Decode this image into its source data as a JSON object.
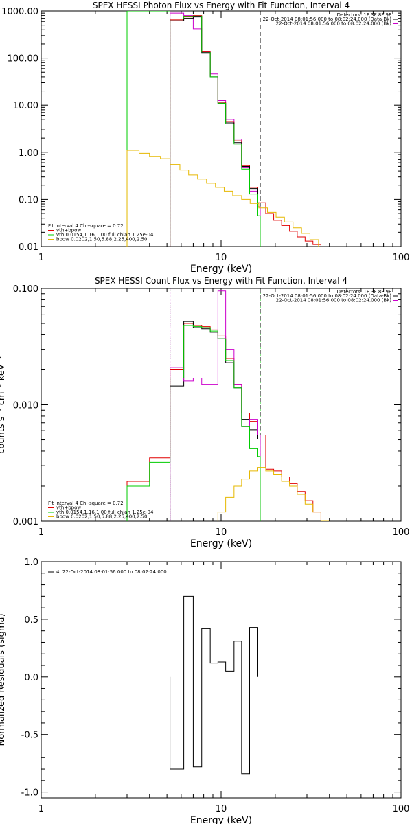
{
  "chart_data": [
    {
      "type": "line",
      "title": "SPEX HESSI Photon Flux vs Energy with Fit Function, Interval 4",
      "xlabel": "Energy (keV)",
      "ylabel": "",
      "xscale": "log",
      "yscale": "log",
      "xlim": [
        1,
        100
      ],
      "ylim": [
        0.01,
        1000
      ],
      "x_ticks": [
        "1",
        "10",
        "100"
      ],
      "y_ticks": [
        "0.01",
        "0.10",
        "1.00",
        "10.00",
        "100.00",
        "1000.00"
      ],
      "detectors": "Detectors: 1F 3F 8F 9F",
      "legend": [
        {
          "text": "Fit Interval 4   Chi-square = 0.72",
          "color": "#000000"
        },
        {
          "text": "vth+bpow",
          "color": "#e00000"
        },
        {
          "text": "vth 0.0154,1.16,1.00  full chian 1.25e-04",
          "color": "#00cc00"
        },
        {
          "text": "bpow 0.0202,1.50,5.88,2.25,400,2.50",
          "color": "#e6b800"
        }
      ],
      "time_legend": [
        {
          "text": "22-Oct-2014 08:01:56.000 to 08:02:24.000 (Data-Bk)",
          "color": "#000000"
        },
        {
          "text": "22-Oct-2014 08:01:56.000 to 08:02:24.000 (Bk)",
          "color": "#cc00cc"
        }
      ],
      "vlines": [
        {
          "x": 3.0,
          "color": "#00cc00",
          "dash": ""
        },
        {
          "x": 5.2,
          "color": "#cc00cc",
          "dash": "3,2"
        },
        {
          "x": 16.5,
          "color": "#000000",
          "dash": "6,4"
        }
      ],
      "series": [
        {
          "color": "#00cc00",
          "edges": [
            3.0,
            5.2
          ],
          "values": [
            1000,
            1000
          ]
        },
        {
          "color": "#cc00cc",
          "edges": [
            5.2,
            6.2,
            7.0,
            7.8,
            8.7,
            9.6,
            10.6,
            11.8,
            13.0,
            14.4,
            16.0,
            16.5
          ],
          "values": [
            900,
            800,
            420,
            140,
            46,
            12.5,
            5.0,
            1.9,
            0.48,
            0.15,
            0.07
          ]
        },
        {
          "color": "#e00000",
          "edges": [
            5.2,
            6.2,
            7.0,
            7.8,
            8.7,
            9.6,
            10.6,
            11.8,
            13.0,
            14.4,
            16.0,
            17.7,
            19.6,
            21.7,
            24.0,
            26.5,
            29.3,
            32.4,
            35.9
          ],
          "values": [
            650,
            750,
            800,
            140,
            42,
            11.5,
            4.5,
            1.75,
            0.52,
            0.18,
            0.085,
            0.05,
            0.036,
            0.028,
            0.021,
            0.016,
            0.013,
            0.011
          ]
        },
        {
          "color": "#000000",
          "edges": [
            5.2,
            6.2,
            7.0,
            7.8,
            8.7,
            9.6,
            10.6,
            11.8,
            13.0,
            14.4,
            16.0
          ],
          "values": [
            620,
            700,
            750,
            130,
            40,
            11,
            4.2,
            1.6,
            0.5,
            0.17,
            0.08
          ]
        },
        {
          "color": "#00cc00",
          "edges": [
            5.2,
            6.2,
            7.0,
            7.8,
            8.7,
            9.6,
            10.6,
            11.8,
            13.0,
            14.4,
            16.0,
            16.5
          ],
          "values": [
            680,
            760,
            780,
            135,
            40,
            11,
            4.0,
            1.5,
            0.44,
            0.13,
            0.045
          ]
        },
        {
          "color": "#e6b800",
          "edges": [
            3.0,
            3.5,
            4.0,
            4.6,
            5.2,
            5.9,
            6.6,
            7.4,
            8.3,
            9.3,
            10.4,
            11.6,
            13.0,
            14.5,
            16.2,
            18.1,
            20.2,
            22.5,
            25.1,
            28.0,
            31.2,
            34.8
          ],
          "values": [
            1.1,
            0.95,
            0.82,
            0.73,
            0.55,
            0.42,
            0.33,
            0.27,
            0.22,
            0.18,
            0.15,
            0.12,
            0.1,
            0.082,
            0.066,
            0.053,
            0.042,
            0.033,
            0.025,
            0.019,
            0.014
          ]
        }
      ]
    },
    {
      "type": "line",
      "title": "SPEX HESSI Count Flux vs Energy with Fit Function, Interval 4",
      "xlabel": "Energy (keV)",
      "ylabel": "counts s⁻¹ cm⁻² keV⁻¹",
      "xscale": "log",
      "yscale": "log",
      "xlim": [
        1,
        100
      ],
      "ylim": [
        0.001,
        0.1
      ],
      "x_ticks": [
        "1",
        "10",
        "100"
      ],
      "y_ticks": [
        "0.001",
        "0.010",
        "0.100"
      ],
      "detectors": "Detectors: 1F 3F 8F 9F",
      "legend": [
        {
          "text": "Fit Interval 4   Chi-square = 0.72",
          "color": "#000000"
        },
        {
          "text": "vth+bpow",
          "color": "#e00000"
        },
        {
          "text": "vth 0.0154,1.16,1.00  full chian 1.25e-04",
          "color": "#00cc00"
        },
        {
          "text": "bpow 0.0202,1.50,5.88,2.25,400,2.50",
          "color": "#e6b800"
        }
      ],
      "time_legend": [
        {
          "text": "22-Oct-2014 08:01:56.000 to 08:02:24.000 (Data-Bk)",
          "color": "#000000"
        },
        {
          "text": "22-Oct-2014 08:01:56.000 to 08:02:24.000 (Bk)",
          "color": "#cc00cc"
        }
      ],
      "vlines": [
        {
          "x": 5.2,
          "color": "#000000",
          "dash": "1,2"
        },
        {
          "x": 5.2,
          "color": "#cc00cc",
          "dash": "3,2"
        },
        {
          "x": 16.5,
          "color": "#00cc00",
          "dash": "3,2"
        },
        {
          "x": 16.5,
          "color": "#000000",
          "dash": "6,4"
        }
      ],
      "series": [
        {
          "color": "#e00000",
          "edges": [
            3.0,
            4.0,
            5.2,
            6.2,
            7.0,
            7.8,
            8.7,
            9.6,
            10.6,
            11.8,
            13.0,
            14.4,
            16.0,
            17.7,
            19.6,
            21.7,
            24.0,
            26.5,
            29.3,
            32.4,
            35.9,
            39.7
          ],
          "values": [
            0.0022,
            0.0035,
            0.02,
            0.05,
            0.048,
            0.047,
            0.044,
            0.039,
            0.025,
            0.015,
            0.0085,
            0.0072,
            0.0055,
            0.0028,
            0.0027,
            0.0024,
            0.0021,
            0.0018,
            0.0015,
            0.0012,
            0.001
          ]
        },
        {
          "color": "#000000",
          "edges": [
            5.2,
            6.2,
            7.0,
            7.8,
            8.7,
            9.6,
            10.6,
            11.8,
            13.0,
            14.4,
            16.0
          ],
          "values": [
            0.0145,
            0.052,
            0.046,
            0.045,
            0.042,
            0.037,
            0.023,
            0.014,
            0.0075,
            0.0061,
            0.0051
          ]
        },
        {
          "color": "#cc00cc",
          "edges": [
            5.2,
            6.2,
            7.0,
            7.8,
            8.7,
            9.6,
            10.6,
            11.8,
            13.0,
            14.4,
            16.0,
            16.5
          ],
          "values": [
            0.021,
            0.016,
            0.017,
            0.015,
            0.015,
            0.095,
            0.03,
            0.015,
            0.0065,
            0.0075,
            0.0055
          ]
        },
        {
          "color": "#00cc00",
          "edges": [
            3.0,
            4.0,
            5.2,
            6.2,
            7.0,
            7.8,
            8.7,
            9.6,
            10.6,
            11.8,
            13.0,
            14.4,
            16.0,
            16.5
          ],
          "values": [
            0.002,
            0.0032,
            0.017,
            0.048,
            0.047,
            0.046,
            0.043,
            0.037,
            0.024,
            0.014,
            0.0065,
            0.0042,
            0.0036
          ]
        },
        {
          "color": "#e6b800",
          "edges": [
            9.6,
            10.6,
            11.8,
            13.0,
            14.4,
            16.0,
            17.7,
            19.6,
            21.7,
            24.0,
            26.5,
            29.3,
            32.4,
            35.9,
            39.7
          ],
          "values": [
            0.0012,
            0.0016,
            0.002,
            0.0023,
            0.0027,
            0.0029,
            0.0027,
            0.0025,
            0.0022,
            0.002,
            0.0017,
            0.0014,
            0.0012,
            0.001
          ]
        }
      ]
    },
    {
      "type": "line",
      "title": "",
      "xlabel": "Energy (keV)",
      "ylabel": "Normalized Residuals (sigma)",
      "xscale": "log",
      "yscale": "linear",
      "xlim": [
        1,
        100
      ],
      "ylim": [
        -1.05,
        1.0
      ],
      "x_ticks": [
        "1",
        "10",
        "100"
      ],
      "y_ticks": [
        "-1.0",
        "-0.5",
        "0.0",
        "0.5",
        "1.0"
      ],
      "legend": [
        {
          "text": "4, 22-Oct-2014 08:01:56.000 to 08:02:24.000",
          "color": "#000000"
        }
      ],
      "series": [
        {
          "color": "#000000",
          "edges": [
            5.2,
            6.2,
            7.0,
            7.8,
            8.7,
            9.6,
            10.6,
            11.8,
            13.0,
            14.4,
            16.0
          ],
          "values": [
            -0.8,
            0.7,
            -0.78,
            0.42,
            0.12,
            0.13,
            0.05,
            0.31,
            -0.84,
            0.43
          ]
        }
      ]
    }
  ]
}
